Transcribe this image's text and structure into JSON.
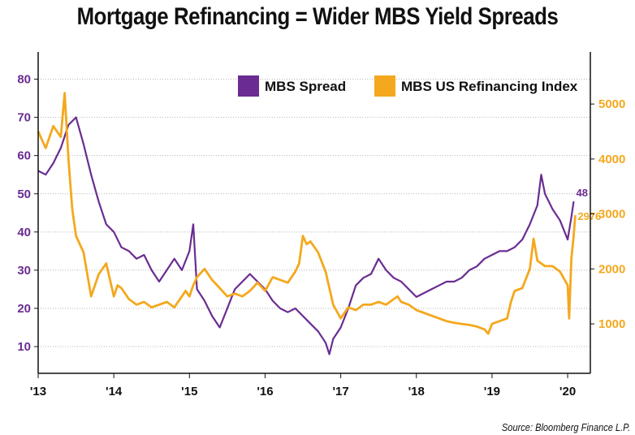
{
  "title": "Mortgage Refinancing = Wider MBS Yield Spreads",
  "source": "Source: Bloomberg Finance L.P.",
  "colors": {
    "spread": "#6a2c91",
    "refi": "#f4a81d",
    "axis": "#111111",
    "grid": "#b5b5b5"
  },
  "chart_data": {
    "type": "line",
    "title": "Mortgage Refinancing = Wider MBS Yield Spreads",
    "x_range": [
      2013.0,
      2020.3
    ],
    "x_ticks": [
      {
        "x": 2013,
        "label": "'13"
      },
      {
        "x": 2014,
        "label": "'14"
      },
      {
        "x": 2015,
        "label": "'15"
      },
      {
        "x": 2016,
        "label": "'16"
      },
      {
        "x": 2017,
        "label": "'17"
      },
      {
        "x": 2018,
        "label": "'18"
      },
      {
        "x": 2019,
        "label": "'19"
      },
      {
        "x": 2020,
        "label": "'20"
      }
    ],
    "left_axis": {
      "min": 3,
      "max": 85,
      "ticks": [
        10,
        20,
        30,
        40,
        50,
        60,
        70,
        80
      ],
      "color": "#6a2c91"
    },
    "right_axis": {
      "min": 100,
      "max": 5800,
      "ticks": [
        1000,
        2000,
        3000,
        4000,
        5000
      ],
      "color": "#f4a81d"
    },
    "grid": "horizontal",
    "legend_position": "top",
    "series": [
      {
        "name": "MBS Spread",
        "axis": "left",
        "color": "#6a2c91",
        "end_label": "48",
        "points": [
          [
            2013.0,
            56
          ],
          [
            2013.1,
            55
          ],
          [
            2013.2,
            58
          ],
          [
            2013.3,
            62
          ],
          [
            2013.4,
            68
          ],
          [
            2013.5,
            70
          ],
          [
            2013.6,
            63
          ],
          [
            2013.7,
            55
          ],
          [
            2013.8,
            48
          ],
          [
            2013.9,
            42
          ],
          [
            2014.0,
            40
          ],
          [
            2014.1,
            36
          ],
          [
            2014.2,
            35
          ],
          [
            2014.3,
            33
          ],
          [
            2014.4,
            34
          ],
          [
            2014.5,
            30
          ],
          [
            2014.6,
            27
          ],
          [
            2014.7,
            30
          ],
          [
            2014.8,
            33
          ],
          [
            2014.9,
            30
          ],
          [
            2015.0,
            35
          ],
          [
            2015.05,
            42
          ],
          [
            2015.1,
            25
          ],
          [
            2015.2,
            22
          ],
          [
            2015.3,
            18
          ],
          [
            2015.4,
            15
          ],
          [
            2015.5,
            20
          ],
          [
            2015.6,
            25
          ],
          [
            2015.7,
            27
          ],
          [
            2015.8,
            29
          ],
          [
            2015.9,
            27
          ],
          [
            2016.0,
            25
          ],
          [
            2016.1,
            22
          ],
          [
            2016.2,
            20
          ],
          [
            2016.3,
            19
          ],
          [
            2016.4,
            20
          ],
          [
            2016.5,
            18
          ],
          [
            2016.6,
            16
          ],
          [
            2016.7,
            14
          ],
          [
            2016.8,
            11
          ],
          [
            2016.85,
            8
          ],
          [
            2016.9,
            12
          ],
          [
            2017.0,
            15
          ],
          [
            2017.1,
            20
          ],
          [
            2017.2,
            26
          ],
          [
            2017.3,
            28
          ],
          [
            2017.4,
            29
          ],
          [
            2017.5,
            33
          ],
          [
            2017.6,
            30
          ],
          [
            2017.7,
            28
          ],
          [
            2017.8,
            27
          ],
          [
            2017.9,
            25
          ],
          [
            2018.0,
            23
          ],
          [
            2018.1,
            24
          ],
          [
            2018.2,
            25
          ],
          [
            2018.3,
            26
          ],
          [
            2018.4,
            27
          ],
          [
            2018.5,
            27
          ],
          [
            2018.6,
            28
          ],
          [
            2018.7,
            30
          ],
          [
            2018.8,
            31
          ],
          [
            2018.9,
            33
          ],
          [
            2019.0,
            34
          ],
          [
            2019.1,
            35
          ],
          [
            2019.2,
            35
          ],
          [
            2019.3,
            36
          ],
          [
            2019.4,
            38
          ],
          [
            2019.5,
            42
          ],
          [
            2019.6,
            47
          ],
          [
            2019.65,
            55
          ],
          [
            2019.7,
            50
          ],
          [
            2019.8,
            46
          ],
          [
            2019.9,
            43
          ],
          [
            2020.0,
            38
          ],
          [
            2020.05,
            44
          ],
          [
            2020.08,
            48
          ]
        ]
      },
      {
        "name": "MBS US Refinancing Index",
        "axis": "right",
        "color": "#f4a81d",
        "end_label": "2976",
        "points": [
          [
            2013.0,
            4500
          ],
          [
            2013.1,
            4200
          ],
          [
            2013.2,
            4600
          ],
          [
            2013.3,
            4400
          ],
          [
            2013.35,
            5200
          ],
          [
            2013.4,
            4000
          ],
          [
            2013.45,
            3100
          ],
          [
            2013.5,
            2600
          ],
          [
            2013.6,
            2300
          ],
          [
            2013.7,
            1500
          ],
          [
            2013.8,
            1900
          ],
          [
            2013.9,
            2100
          ],
          [
            2013.95,
            1800
          ],
          [
            2014.0,
            1500
          ],
          [
            2014.05,
            1700
          ],
          [
            2014.1,
            1650
          ],
          [
            2014.2,
            1450
          ],
          [
            2014.3,
            1350
          ],
          [
            2014.4,
            1400
          ],
          [
            2014.5,
            1300
          ],
          [
            2014.6,
            1350
          ],
          [
            2014.7,
            1400
          ],
          [
            2014.8,
            1300
          ],
          [
            2014.9,
            1500
          ],
          [
            2014.95,
            1600
          ],
          [
            2015.0,
            1500
          ],
          [
            2015.05,
            1700
          ],
          [
            2015.1,
            1850
          ],
          [
            2015.2,
            2000
          ],
          [
            2015.3,
            1800
          ],
          [
            2015.4,
            1650
          ],
          [
            2015.5,
            1500
          ],
          [
            2015.6,
            1550
          ],
          [
            2015.7,
            1500
          ],
          [
            2015.8,
            1600
          ],
          [
            2015.9,
            1750
          ],
          [
            2016.0,
            1600
          ],
          [
            2016.1,
            1850
          ],
          [
            2016.2,
            1800
          ],
          [
            2016.3,
            1750
          ],
          [
            2016.4,
            1950
          ],
          [
            2016.45,
            2100
          ],
          [
            2016.5,
            2600
          ],
          [
            2016.55,
            2450
          ],
          [
            2016.6,
            2500
          ],
          [
            2016.7,
            2300
          ],
          [
            2016.8,
            1950
          ],
          [
            2016.9,
            1350
          ],
          [
            2017.0,
            1100
          ],
          [
            2017.1,
            1300
          ],
          [
            2017.2,
            1250
          ],
          [
            2017.3,
            1350
          ],
          [
            2017.4,
            1350
          ],
          [
            2017.5,
            1400
          ],
          [
            2017.6,
            1350
          ],
          [
            2017.7,
            1450
          ],
          [
            2017.75,
            1500
          ],
          [
            2017.8,
            1400
          ],
          [
            2017.9,
            1350
          ],
          [
            2018.0,
            1250
          ],
          [
            2018.1,
            1200
          ],
          [
            2018.2,
            1150
          ],
          [
            2018.3,
            1100
          ],
          [
            2018.4,
            1050
          ],
          [
            2018.5,
            1020
          ],
          [
            2018.6,
            1000
          ],
          [
            2018.7,
            980
          ],
          [
            2018.8,
            950
          ],
          [
            2018.9,
            900
          ],
          [
            2018.95,
            820
          ],
          [
            2019.0,
            1000
          ],
          [
            2019.1,
            1050
          ],
          [
            2019.2,
            1100
          ],
          [
            2019.25,
            1400
          ],
          [
            2019.3,
            1600
          ],
          [
            2019.4,
            1650
          ],
          [
            2019.5,
            2000
          ],
          [
            2019.55,
            2550
          ],
          [
            2019.6,
            2150
          ],
          [
            2019.7,
            2050
          ],
          [
            2019.8,
            2050
          ],
          [
            2019.9,
            1950
          ],
          [
            2020.0,
            1700
          ],
          [
            2020.02,
            1100
          ],
          [
            2020.05,
            2200
          ],
          [
            2020.08,
            2600
          ],
          [
            2020.1,
            2976
          ]
        ]
      }
    ]
  }
}
